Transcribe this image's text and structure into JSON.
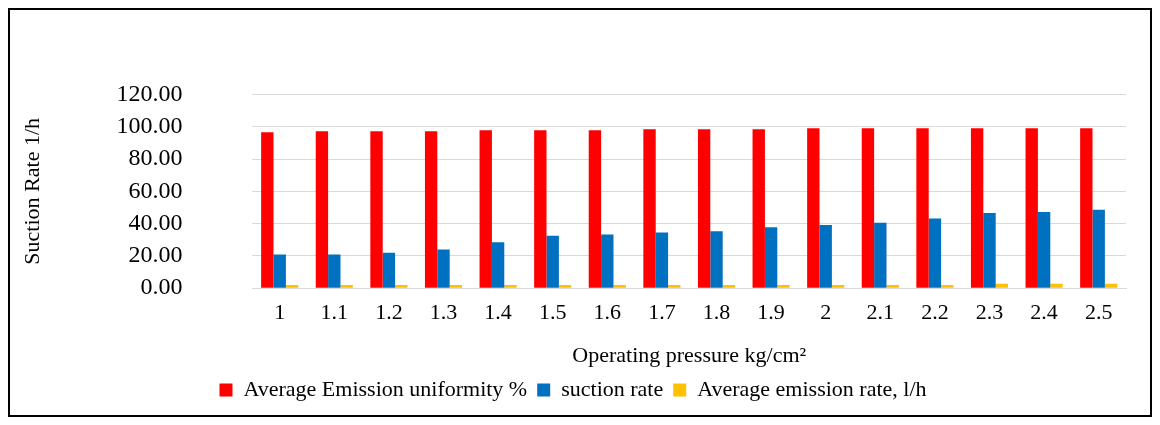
{
  "chart_data": {
    "type": "bar",
    "xlabel": "Operating pressure kg/cm²",
    "ylabel": "Suction Rate 1/h",
    "categories": [
      "1",
      "1.1",
      "1.2",
      "1.3",
      "1.4",
      "1.5",
      "1.6",
      "1.7",
      "1.8",
      "1.9",
      "2",
      "2.1",
      "2.2",
      "2.3",
      "2.4",
      "2.5"
    ],
    "series": [
      {
        "name": "Average Emission uniformity %",
        "color": "#ff0000",
        "values": [
          96.5,
          97.2,
          97.2,
          97.2,
          97.8,
          97.8,
          97.8,
          98.4,
          98.4,
          98.4,
          99,
          99,
          99,
          99,
          99,
          99
        ]
      },
      {
        "name": "suction rate",
        "color": "#0070c0",
        "values": [
          20.8,
          20.8,
          22,
          24,
          28.5,
          32.5,
          33.3,
          34.5,
          35.2,
          37.8,
          39.2,
          40.5,
          43.2,
          46.5,
          47.2,
          48.5
        ]
      },
      {
        "name": "Average emission rate, l/h",
        "color": "#ffc000",
        "values": [
          2,
          2,
          2,
          2,
          2,
          2,
          2,
          2,
          2,
          2,
          2,
          2,
          2,
          2.8,
          2.8,
          2.8
        ]
      }
    ],
    "ylim": [
      0,
      120
    ],
    "yticks": [
      {
        "value": 0,
        "label": "0.00"
      },
      {
        "value": 20,
        "label": "20.00"
      },
      {
        "value": 40,
        "label": "40.00"
      },
      {
        "value": 60,
        "label": "60.00"
      },
      {
        "value": 80,
        "label": "80.00"
      },
      {
        "value": 100,
        "label": "100.00"
      },
      {
        "value": 120,
        "label": "120.00"
      }
    ],
    "grid": "y",
    "legend": "bottom"
  }
}
